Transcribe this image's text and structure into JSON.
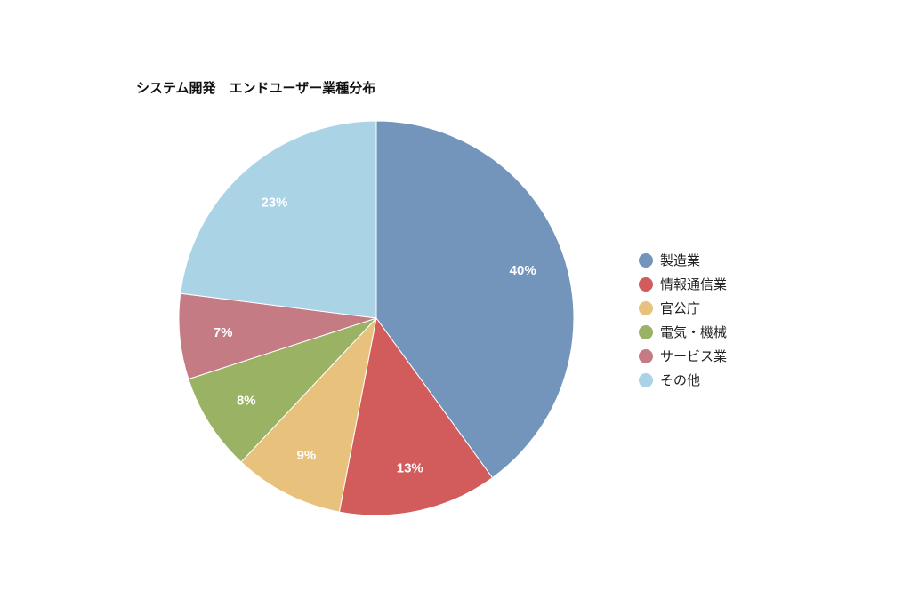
{
  "chart_data": {
    "type": "pie",
    "title": "システム開発　エンドユーザー業種分布",
    "unit": "%",
    "legend_position": "right",
    "slices": [
      {
        "name": "製造業",
        "value": 40,
        "label": "40%",
        "color": "#7395bb"
      },
      {
        "name": "情報通信業",
        "value": 13,
        "label": "13%",
        "color": "#d25b5b"
      },
      {
        "name": "官公庁",
        "value": 9,
        "label": "9%",
        "color": "#e8c27c"
      },
      {
        "name": "電気・機械",
        "value": 8,
        "label": "8%",
        "color": "#9ab263"
      },
      {
        "name": "サービス業",
        "value": 7,
        "label": "7%",
        "color": "#c47b84"
      },
      {
        "name": "その他",
        "value": 23,
        "label": "23%",
        "color": "#aad3e6"
      }
    ]
  }
}
